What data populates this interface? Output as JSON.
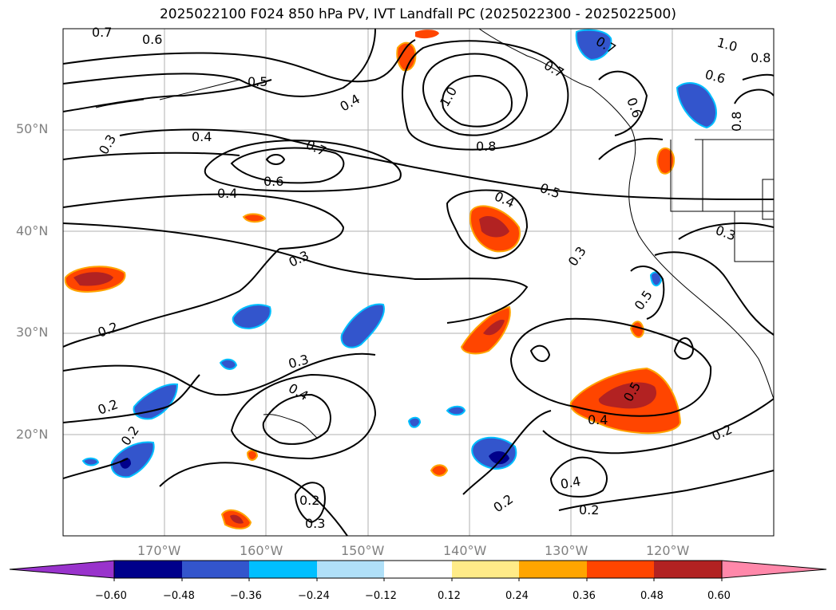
{
  "title": "2025022100 F024 850 hPa PV, IVT Landfall PC (2025022300 - 2025022500)",
  "map": {
    "lat_labels": [
      "50°N",
      "40°N",
      "30°N",
      "20°N"
    ],
    "lon_labels": [
      "170°W",
      "160°W",
      "150°W",
      "140°W",
      "130°W",
      "120°W"
    ],
    "contour_labels": [
      "0.7",
      "0.6",
      "0.5",
      "0.4",
      "0.3",
      "0.2",
      "1.0",
      "0.8"
    ],
    "contour_line_color": "#000000",
    "grid_color": "#b0b0b0"
  },
  "colorbar": {
    "ticks": [
      "−0.60",
      "−0.48",
      "−0.36",
      "−0.24",
      "−0.12",
      "0.12",
      "0.24",
      "0.36",
      "0.48",
      "0.60"
    ],
    "colors": [
      "#00008b",
      "#3355cc",
      "#00bfff",
      "#b0e0f8",
      "#ffffff",
      "#ffeb88",
      "#ffa500",
      "#ff4500",
      "#b22222",
      "#ff88aa"
    ],
    "under_color": "#9933cc",
    "over_color": "#ff88aa"
  }
}
